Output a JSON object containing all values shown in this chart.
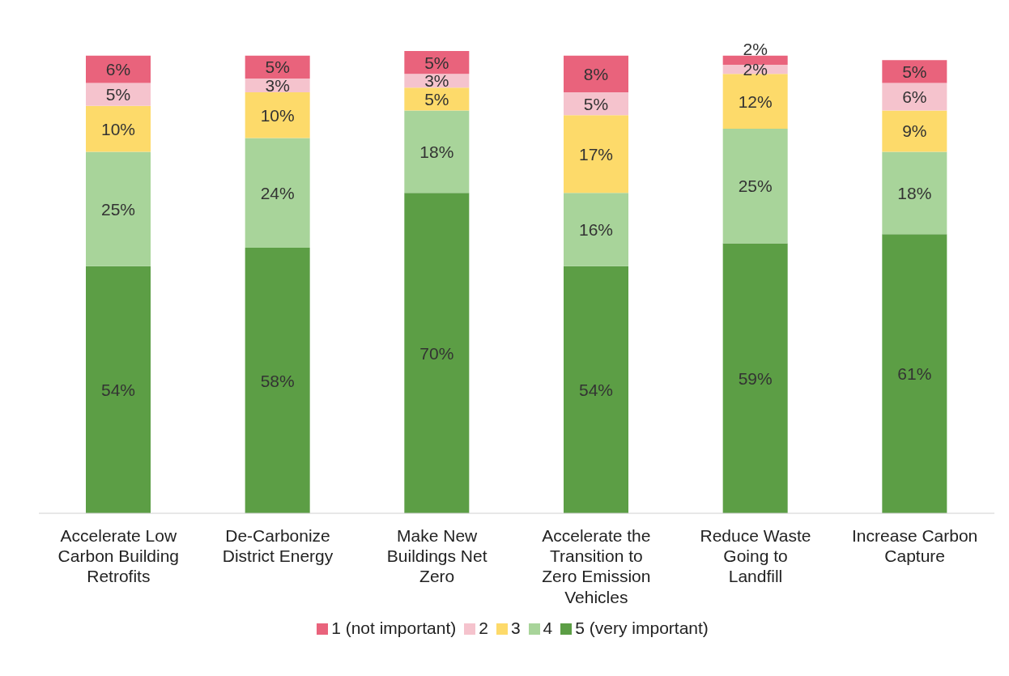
{
  "chart_data": {
    "type": "bar",
    "stacked": true,
    "legend": "bottom",
    "grid": false,
    "categories": [
      "Accelerate Low Carbon Building Retrofits",
      "De-Carbonize District Energy",
      "Make New Buildings Net Zero",
      "Accelerate the Transition to Zero Emission Vehicles",
      "Reduce Waste Going to Landfill",
      "Increase Carbon Capture"
    ],
    "series": [
      {
        "name": "5 (very important)",
        "color": "#5c9e45",
        "values": [
          54,
          58,
          70,
          54,
          59,
          61
        ],
        "value_labels": [
          "54%",
          "58%",
          "70%",
          "54%",
          "59%",
          "61%"
        ]
      },
      {
        "name": "4",
        "color": "#a8d49a",
        "values": [
          25,
          24,
          18,
          16,
          25,
          18
        ],
        "value_labels": [
          "25%",
          "24%",
          "18%",
          "16%",
          "25%",
          "18%"
        ]
      },
      {
        "name": "3",
        "color": "#fdda6a",
        "values": [
          10,
          10,
          5,
          17,
          12,
          9
        ],
        "value_labels": [
          "10%",
          "10%",
          "5%",
          "17%",
          "12%",
          "9%"
        ]
      },
      {
        "name": "2",
        "color": "#f5c3cd",
        "values": [
          5,
          3,
          3,
          5,
          2,
          6
        ],
        "value_labels": [
          "5%",
          "3%",
          "3%",
          "5%",
          "2%",
          "6%"
        ]
      },
      {
        "name": "1 (not important)",
        "color": "#e9637c",
        "values": [
          6,
          5,
          5,
          8,
          2,
          5
        ],
        "value_labels": [
          "6%",
          "5%",
          "5%",
          "8%",
          "2%",
          "5%"
        ]
      }
    ]
  }
}
